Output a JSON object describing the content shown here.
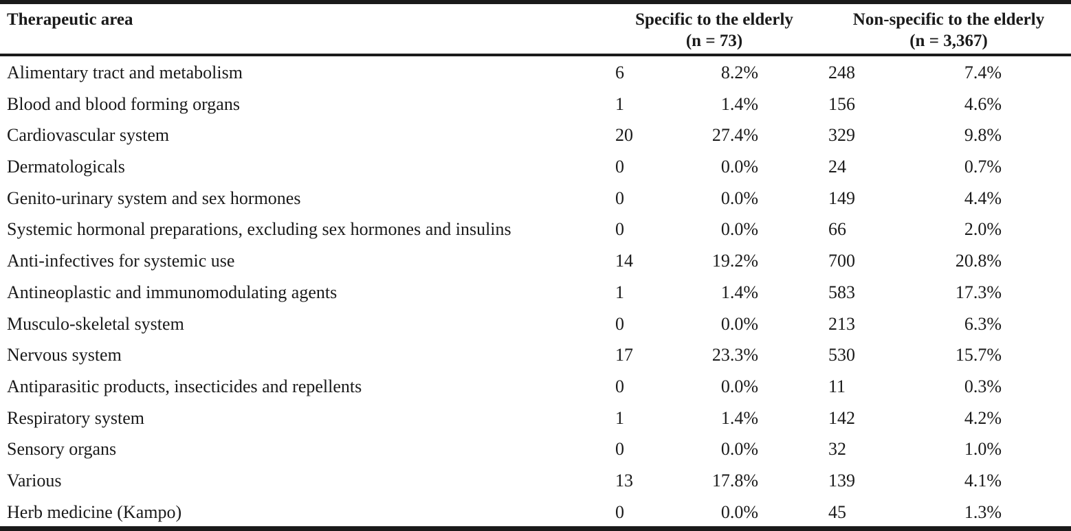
{
  "table": {
    "headers": {
      "area": "Therapeutic area",
      "specific": {
        "line1": "Specific to the elderly",
        "line2": "(n = 73)"
      },
      "nonspecific": {
        "line1": "Non-specific to the elderly",
        "line2": "(n = 3,367)"
      }
    },
    "rows": [
      {
        "area": "Alimentary tract and metabolism",
        "spec_n": "6",
        "spec_pct": "8.2%",
        "non_n": "248",
        "non_pct": "7.4%"
      },
      {
        "area": "Blood and blood forming organs",
        "spec_n": "1",
        "spec_pct": "1.4%",
        "non_n": "156",
        "non_pct": "4.6%"
      },
      {
        "area": "Cardiovascular system",
        "spec_n": "20",
        "spec_pct": "27.4%",
        "non_n": "329",
        "non_pct": "9.8%"
      },
      {
        "area": "Dermatologicals",
        "spec_n": "0",
        "spec_pct": "0.0%",
        "non_n": "24",
        "non_pct": "0.7%"
      },
      {
        "area": "Genito-urinary system and sex hormones",
        "spec_n": "0",
        "spec_pct": "0.0%",
        "non_n": "149",
        "non_pct": "4.4%"
      },
      {
        "area": "Systemic hormonal preparations, excluding sex hormones and insulins",
        "spec_n": "0",
        "spec_pct": "0.0%",
        "non_n": "66",
        "non_pct": "2.0%"
      },
      {
        "area": "Anti-infectives for systemic use",
        "spec_n": "14",
        "spec_pct": "19.2%",
        "non_n": "700",
        "non_pct": "20.8%"
      },
      {
        "area": "Antineoplastic and immunomodulating agents",
        "spec_n": "1",
        "spec_pct": "1.4%",
        "non_n": "583",
        "non_pct": "17.3%"
      },
      {
        "area": "Musculo-skeletal system",
        "spec_n": "0",
        "spec_pct": "0.0%",
        "non_n": "213",
        "non_pct": "6.3%"
      },
      {
        "area": "Nervous system",
        "spec_n": "17",
        "spec_pct": "23.3%",
        "non_n": "530",
        "non_pct": "15.7%"
      },
      {
        "area": "Antiparasitic products, insecticides and repellents",
        "spec_n": "0",
        "spec_pct": "0.0%",
        "non_n": "11",
        "non_pct": "0.3%"
      },
      {
        "area": "Respiratory system",
        "spec_n": "1",
        "spec_pct": "1.4%",
        "non_n": "142",
        "non_pct": "4.2%"
      },
      {
        "area": "Sensory organs",
        "spec_n": "0",
        "spec_pct": "0.0%",
        "non_n": "32",
        "non_pct": "1.0%"
      },
      {
        "area": "Various",
        "spec_n": "13",
        "spec_pct": "17.8%",
        "non_n": "139",
        "non_pct": "4.1%"
      },
      {
        "area": "Herb medicine (Kampo)",
        "spec_n": "0",
        "spec_pct": "0.0%",
        "non_n": "45",
        "non_pct": "1.3%"
      }
    ]
  }
}
